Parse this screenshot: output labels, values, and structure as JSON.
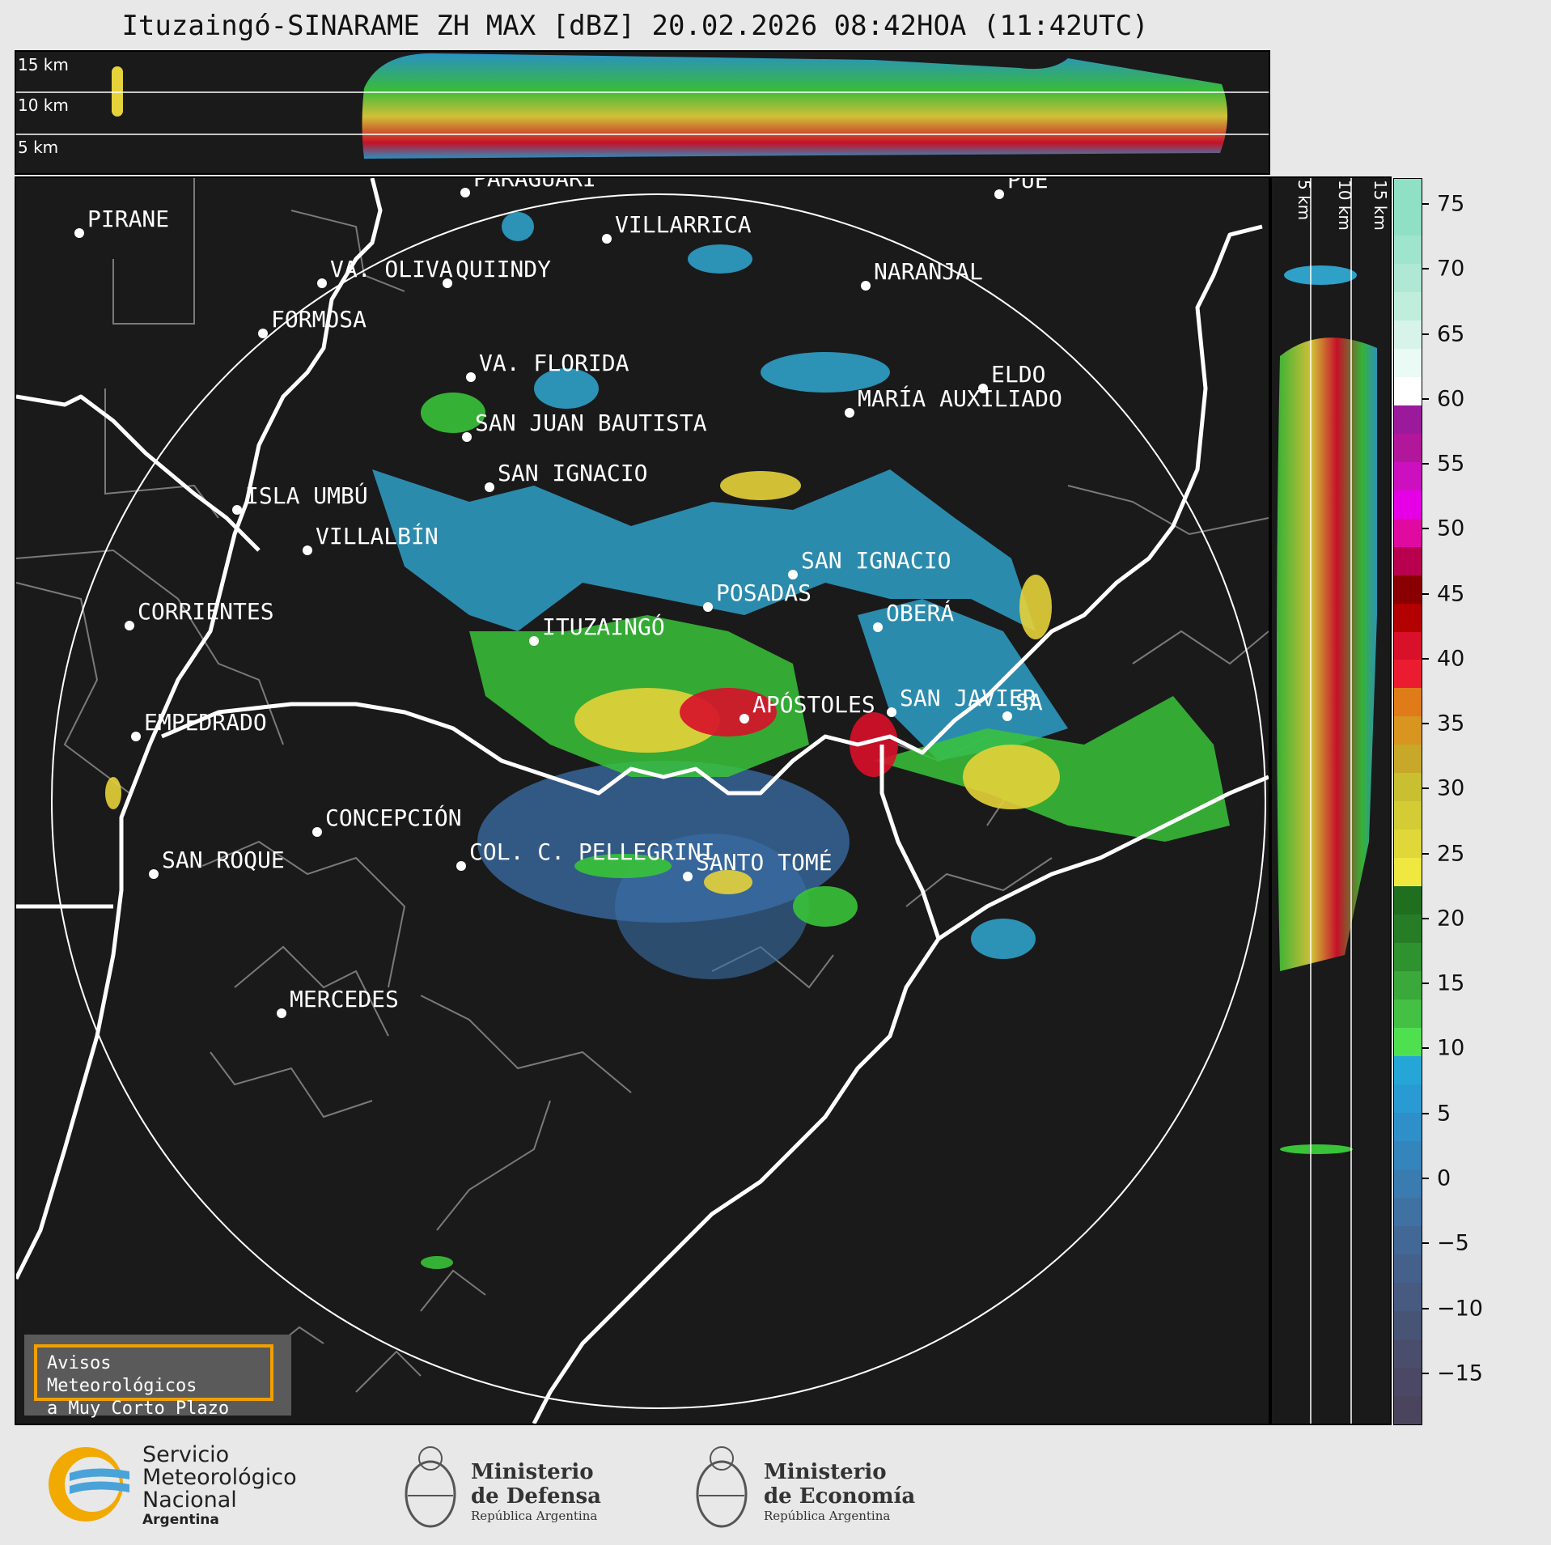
{
  "title": "Ituzaingó-SINARAME ZH MAX [dBZ] 20.02.2026 08:42HOA (11:42UTC)",
  "top_panel": {
    "altitude_labels": [
      "15 km",
      "10 km",
      "5 km"
    ]
  },
  "right_panel": {
    "altitude_labels": [
      "5 km",
      "10 km",
      "15 km"
    ]
  },
  "colorbar": {
    "ticks": [
      "75",
      "70",
      "65",
      "60",
      "55",
      "50",
      "45",
      "40",
      "35",
      "30",
      "25",
      "20",
      "15",
      "10",
      "5",
      "0",
      "−5",
      "−10",
      "−15"
    ],
    "min": -19,
    "max": 77
  },
  "cities": [
    {
      "name": "PIRANE"
    },
    {
      "name": "PARAGUARÍ"
    },
    {
      "name": "VILLARRICA"
    },
    {
      "name": "QUIINDY"
    },
    {
      "name": "VA. OLIVA"
    },
    {
      "name": "FORMOSA"
    },
    {
      "name": "NARANJAL"
    },
    {
      "name": "PUE"
    },
    {
      "name": "VA. FLORIDA"
    },
    {
      "name": "ELDO"
    },
    {
      "name": "MARÍA AUXILIADO"
    },
    {
      "name": "SAN JUAN BAUTISTA"
    },
    {
      "name": "SAN IGNACIO"
    },
    {
      "name": "ISLA UMBÚ"
    },
    {
      "name": "VILLALBÍN"
    },
    {
      "name": "SAN IGNACIO"
    },
    {
      "name": "POSADAS"
    },
    {
      "name": "CORRIENTES"
    },
    {
      "name": "ITUZAINGÓ"
    },
    {
      "name": "OBERÁ"
    },
    {
      "name": "EMPEDRADO"
    },
    {
      "name": "APÓSTOLES"
    },
    {
      "name": "SAN JAVIER"
    },
    {
      "name": "SA"
    },
    {
      "name": "CONCEPCIÓN"
    },
    {
      "name": "SAN ROQUE"
    },
    {
      "name": "COL. C. PELLEGRINI"
    },
    {
      "name": "SANTO TOMÉ"
    },
    {
      "name": "MERCEDES"
    }
  ],
  "alert": {
    "line1": "Avisos Meteorológicos",
    "line2": "a Muy Corto Plazo"
  },
  "logos": {
    "smn": {
      "line1": "Servicio",
      "line2": "Meteorológico",
      "line3": "Nacional",
      "line4": "Argentina"
    },
    "defensa": {
      "line1": "Ministerio",
      "line2": "de Defensa",
      "line3": "República Argentina"
    },
    "economia": {
      "line1": "Ministerio",
      "line2": "de Economía",
      "line3": "República Argentina"
    }
  }
}
